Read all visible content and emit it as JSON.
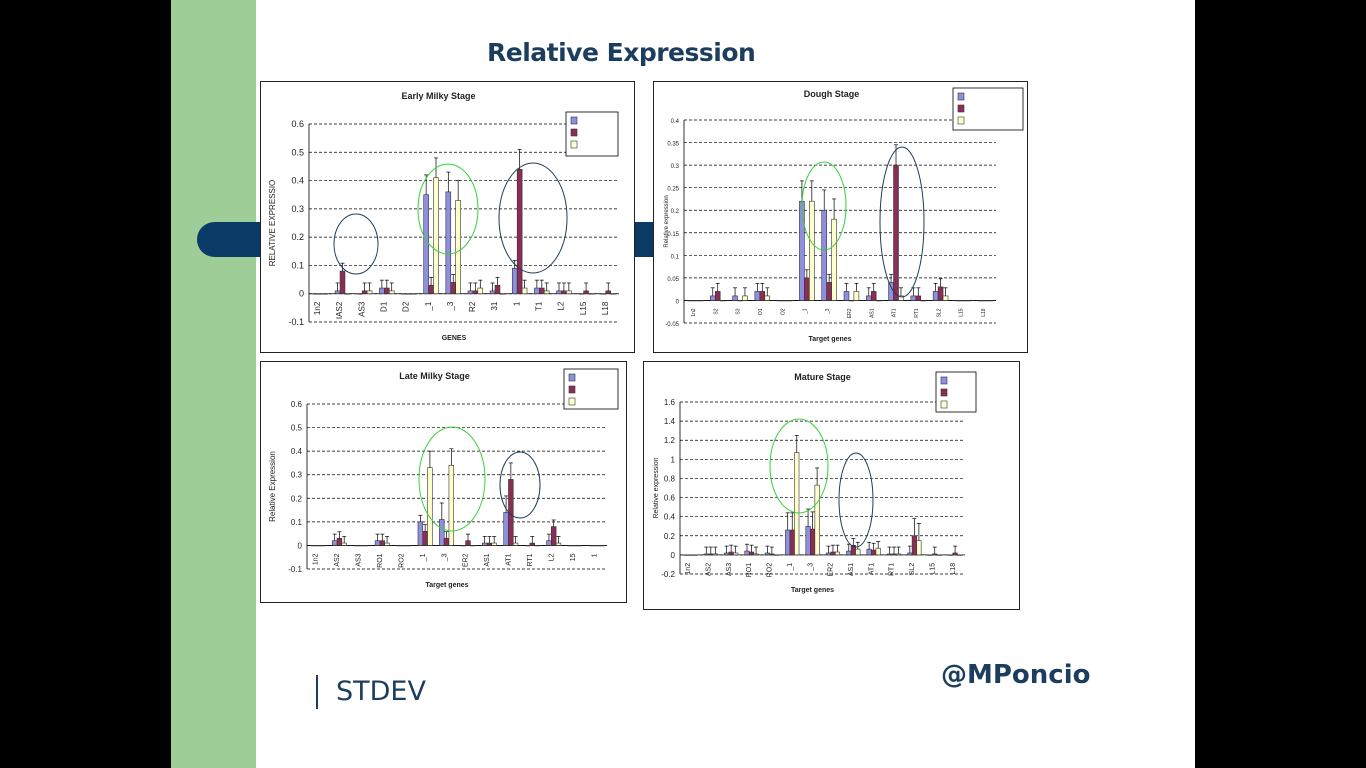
{
  "slide": {
    "title": "Relative Expression",
    "footer_label": "STDEV",
    "handle": "@MPoncio",
    "colors": {
      "green": "#9ecd98",
      "navy": "#1d3d5e",
      "series1": "#8f8fe0",
      "series2": "#8b2e55",
      "series3": "#ffffcc"
    }
  },
  "chart_data": [
    {
      "type": "bar",
      "title": "Early Milky Stage",
      "xlabel": "GENES",
      "ylabel": "RELATIVE EXPRESSIO",
      "ylim": [
        -0.1,
        0.6
      ],
      "yticks": [
        "-0.1",
        "0",
        "0.1",
        "0.2",
        "0.3",
        "0.4",
        "0.5",
        "0.6"
      ],
      "categories": [
        "1n2",
        "IAS2",
        "AS3",
        "D1",
        "D2",
        "_1",
        "_3",
        "R2",
        "31",
        "1",
        "T1",
        "L2",
        "L15",
        "L18"
      ],
      "series": [
        {
          "name": "",
          "values": [
            0,
            0.01,
            0,
            0.02,
            0,
            0.35,
            0.36,
            0.01,
            0.01,
            0.09,
            0.02,
            0.01,
            0,
            0
          ]
        },
        {
          "name": "",
          "values": [
            0,
            0.08,
            0.01,
            0.02,
            0,
            0.03,
            0.04,
            0.01,
            0.03,
            0.44,
            0.02,
            0.01,
            0.01,
            0.01
          ]
        },
        {
          "name": "",
          "values": [
            0,
            0,
            0.01,
            0.01,
            0,
            0.41,
            0.33,
            0.02,
            0,
            0.02,
            0.01,
            0.01,
            0,
            0
          ]
        }
      ]
    },
    {
      "type": "bar",
      "title": "Dough Stage",
      "xlabel": "Target genes",
      "ylabel": "Relative expression",
      "ylim": [
        -0.05,
        0.4
      ],
      "yticks": [
        "-0.05",
        "0",
        "0.05",
        "0.1",
        "0.15",
        "0.2",
        "0.25",
        "0.3",
        "0.35",
        "0.4"
      ],
      "categories": [
        "1n2",
        "S2",
        "S3",
        "O1",
        "O2",
        "_1",
        "_3",
        "ER2",
        "AS1",
        "AT1",
        "RT1",
        "SL2",
        "L15",
        "L18"
      ],
      "series": [
        {
          "name": "",
          "values": [
            0,
            0.01,
            0.01,
            0.02,
            0,
            0.22,
            0.2,
            0.02,
            0.01,
            0.04,
            0.01,
            0.02,
            0,
            0
          ]
        },
        {
          "name": "",
          "values": [
            0,
            0.02,
            0,
            0.02,
            0,
            0.05,
            0.04,
            0,
            0.02,
            0.3,
            0.01,
            0.03,
            0,
            0
          ]
        },
        {
          "name": "",
          "values": [
            0,
            0,
            0.01,
            0.01,
            0,
            0.22,
            0.18,
            0.02,
            0,
            0.01,
            0,
            0.01,
            0,
            0
          ]
        }
      ]
    },
    {
      "type": "bar",
      "title": "Late Milky Stage",
      "xlabel": "Target genes",
      "ylabel": "Relative Expression",
      "ylim": [
        -0.1,
        0.6
      ],
      "yticks": [
        "-0.1",
        "0",
        "0.1",
        "0.2",
        "0.3",
        "0.4",
        "0.5",
        "0.6"
      ],
      "categories": [
        "1n2",
        "AS2",
        "AS3",
        "RO1",
        "RO2",
        "_1",
        "_3",
        "ER2",
        "AS1",
        "AT1",
        "RT1",
        "L2",
        "15",
        "1"
      ],
      "series": [
        {
          "name": "",
          "values": [
            0,
            0.02,
            0,
            0.02,
            0,
            0.1,
            0.11,
            0,
            0.01,
            0.14,
            0,
            0.02,
            0,
            0
          ]
        },
        {
          "name": "",
          "values": [
            0,
            0.03,
            0,
            0.02,
            0,
            0.06,
            0.03,
            0.02,
            0.01,
            0.28,
            0.01,
            0.08,
            0,
            0
          ]
        },
        {
          "name": "",
          "values": [
            0,
            0.01,
            0,
            0.01,
            0,
            0.33,
            0.34,
            0,
            0.01,
            0.01,
            0,
            0.01,
            0,
            0
          ]
        }
      ]
    },
    {
      "type": "bar",
      "title": "Mature Stage",
      "xlabel": "Target genes",
      "ylabel": "Relative expression",
      "ylim": [
        -0.2,
        1.6
      ],
      "yticks": [
        "-0.2",
        "0",
        "0.2",
        "0.4",
        "0.6",
        "0.8",
        "1",
        "1.2",
        "1.4",
        "1.6"
      ],
      "categories": [
        "1n2",
        "AS2",
        "AS3",
        "RO1",
        "RO2",
        "_1",
        "_3",
        "ER2",
        "AS1",
        "AT1",
        "RT1",
        "SL2",
        "L15",
        "L18"
      ],
      "series": [
        {
          "name": "",
          "values": [
            0,
            0.01,
            0.02,
            0.04,
            0.02,
            0.26,
            0.3,
            0.02,
            0.04,
            0.06,
            0.01,
            0.02,
            0,
            0
          ]
        },
        {
          "name": "",
          "values": [
            0,
            0.01,
            0.03,
            0.03,
            0.01,
            0.26,
            0.27,
            0.03,
            0.1,
            0.05,
            0.01,
            0.2,
            0.01,
            0.02
          ]
        },
        {
          "name": "",
          "values": [
            0,
            0.01,
            0.02,
            0.01,
            0,
            1.07,
            0.73,
            0.03,
            0.06,
            0.07,
            0.01,
            0.15,
            0,
            0
          ]
        }
      ]
    }
  ]
}
